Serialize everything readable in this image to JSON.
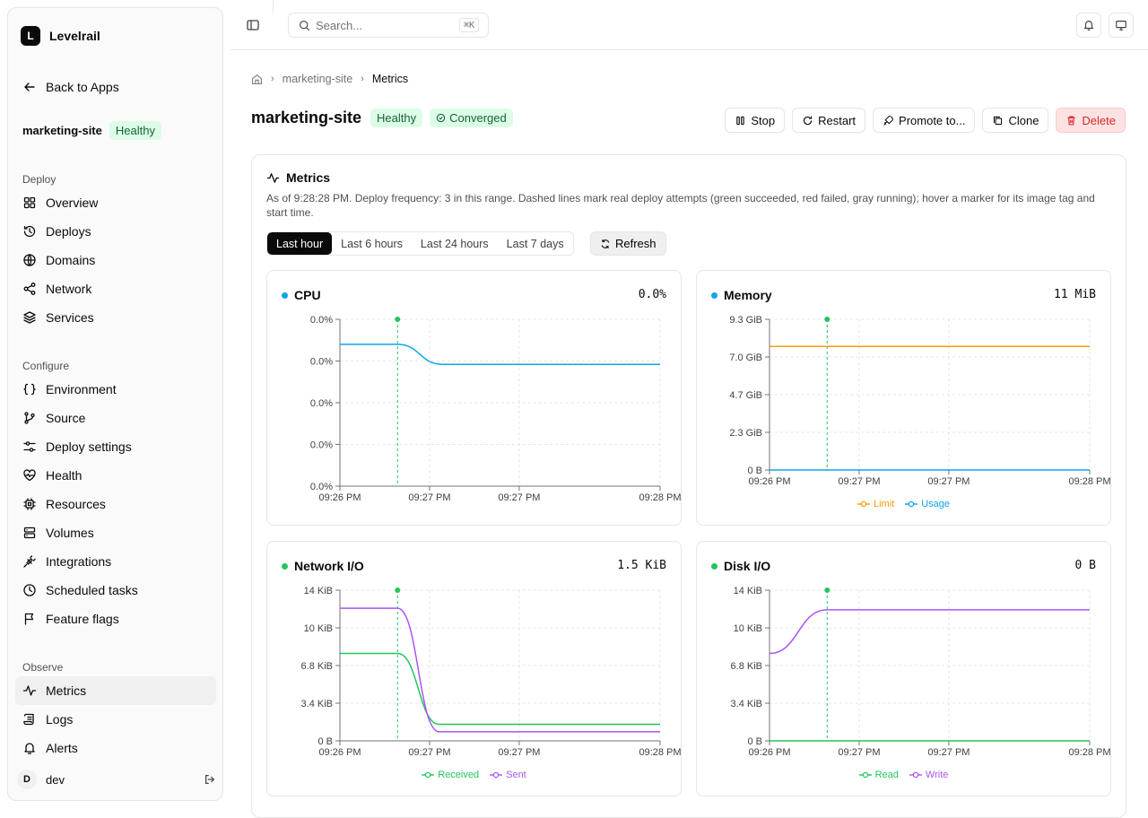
{
  "app": {
    "logo_letter": "L",
    "name": "Levelrail"
  },
  "sidebar": {
    "back": "Back to Apps",
    "app_name": "marketing-site",
    "app_status": "Healthy",
    "groups": [
      {
        "label": "Deploy",
        "items": [
          {
            "label": "Overview",
            "icon": "grid-icon"
          },
          {
            "label": "Deploys",
            "icon": "history-icon"
          },
          {
            "label": "Domains",
            "icon": "globe-icon"
          },
          {
            "label": "Network",
            "icon": "share-icon"
          },
          {
            "label": "Services",
            "icon": "layers-icon"
          }
        ]
      },
      {
        "label": "Configure",
        "items": [
          {
            "label": "Environment",
            "icon": "braces-icon"
          },
          {
            "label": "Source",
            "icon": "git-branch-icon"
          },
          {
            "label": "Deploy settings",
            "icon": "sliders-icon"
          },
          {
            "label": "Health",
            "icon": "heart-pulse-icon"
          },
          {
            "label": "Resources",
            "icon": "cpu-icon"
          },
          {
            "label": "Volumes",
            "icon": "database-icon"
          },
          {
            "label": "Integrations",
            "icon": "plug-icon"
          },
          {
            "label": "Scheduled tasks",
            "icon": "clock-icon"
          },
          {
            "label": "Feature flags",
            "icon": "flag-icon"
          }
        ]
      },
      {
        "label": "Observe",
        "items": [
          {
            "label": "Metrics",
            "icon": "activity-icon",
            "active": true
          },
          {
            "label": "Logs",
            "icon": "scroll-icon"
          },
          {
            "label": "Alerts",
            "icon": "bell-icon"
          }
        ]
      }
    ],
    "user": {
      "initial": "D",
      "name": "dev"
    }
  },
  "topbar": {
    "search_placeholder": "Search...",
    "shortcut": "⌘K"
  },
  "breadcrumb": {
    "app": "marketing-site",
    "current": "Metrics"
  },
  "header": {
    "title": "marketing-site",
    "badges": [
      "Healthy",
      "Converged"
    ],
    "actions": [
      "Stop",
      "Restart",
      "Promote to...",
      "Clone",
      "Delete"
    ]
  },
  "metrics": {
    "title": "Metrics",
    "description": "As of 9:28:28 PM. Deploy frequency: 3 in this range. Dashed lines mark real deploy attempts (green succeeded, red failed, gray running); hover a marker for its image tag and start time.",
    "ranges": [
      "Last hour",
      "Last 6 hours",
      "Last 24 hours",
      "Last 7 days"
    ],
    "active_range": "Last hour",
    "refresh": "Refresh"
  },
  "chart_data": [
    {
      "type": "line",
      "title": "CPU",
      "current_value": "0.0%",
      "dot_color": "#0ea5e9",
      "x_ticks": [
        "09:26 PM",
        "09:27 PM",
        "09:27 PM",
        "09:28 PM"
      ],
      "y_ticks": [
        "0.0%",
        "0.0%",
        "0.0%",
        "0.0%",
        "0.0%"
      ],
      "deploy_marker_x": 0.18,
      "series": [
        {
          "color": "#0ea5e9",
          "points": [
            [
              0,
              0.85
            ],
            [
              0.18,
              0.85
            ],
            [
              0.32,
              0.73
            ],
            [
              1,
              0.73
            ]
          ]
        }
      ]
    },
    {
      "type": "line",
      "title": "Memory",
      "current_value": "11 MiB",
      "dot_color": "#0ea5e9",
      "x_ticks": [
        "09:26 PM",
        "09:27 PM",
        "09:27 PM",
        "09:28 PM"
      ],
      "y_ticks": [
        "9.3 GiB",
        "7.0 GiB",
        "4.7 GiB",
        "2.3 GiB",
        "0 B"
      ],
      "ylim": [
        "0 B",
        "9.3 GiB"
      ],
      "deploy_marker_x": 0.18,
      "series": [
        {
          "name": "Limit",
          "color": "#f59e0b",
          "points": [
            [
              0,
              0.82
            ],
            [
              1,
              0.82
            ]
          ]
        },
        {
          "name": "Usage",
          "color": "#0ea5e9",
          "points": [
            [
              0,
              0.0
            ],
            [
              1,
              0.0
            ]
          ]
        }
      ]
    },
    {
      "type": "line",
      "title": "Network I/O",
      "current_value": "1.5 KiB",
      "dot_color": "#22c55e",
      "x_ticks": [
        "09:26 PM",
        "09:27 PM",
        "09:27 PM",
        "09:28 PM"
      ],
      "y_ticks": [
        "14 KiB",
        "10 KiB",
        "6.8 KiB",
        "3.4 KiB",
        "0 B"
      ],
      "ylim": [
        "0 B",
        "14 KiB"
      ],
      "deploy_marker_x": 0.18,
      "series": [
        {
          "name": "Received",
          "color": "#22c55e",
          "points": [
            [
              0,
              0.58
            ],
            [
              0.18,
              0.58
            ],
            [
              0.31,
              0.11
            ],
            [
              1,
              0.11
            ]
          ]
        },
        {
          "name": "Sent",
          "color": "#a855f7",
          "points": [
            [
              0,
              0.88
            ],
            [
              0.18,
              0.88
            ],
            [
              0.31,
              0.06
            ],
            [
              1,
              0.06
            ]
          ]
        }
      ]
    },
    {
      "type": "line",
      "title": "Disk I/O",
      "current_value": "0 B",
      "dot_color": "#22c55e",
      "x_ticks": [
        "09:26 PM",
        "09:27 PM",
        "09:27 PM",
        "09:28 PM"
      ],
      "y_ticks": [
        "14 KiB",
        "10 KiB",
        "6.8 KiB",
        "3.4 KiB",
        "0 B"
      ],
      "ylim": [
        "0 B",
        "14 KiB"
      ],
      "deploy_marker_x": 0.18,
      "series": [
        {
          "name": "Read",
          "color": "#22c55e",
          "points": [
            [
              0,
              0.0
            ],
            [
              1,
              0.0
            ]
          ]
        },
        {
          "name": "Write",
          "color": "#a855f7",
          "points": [
            [
              0,
              0.58
            ],
            [
              0.18,
              0.87
            ],
            [
              1,
              0.87
            ]
          ]
        }
      ]
    }
  ]
}
